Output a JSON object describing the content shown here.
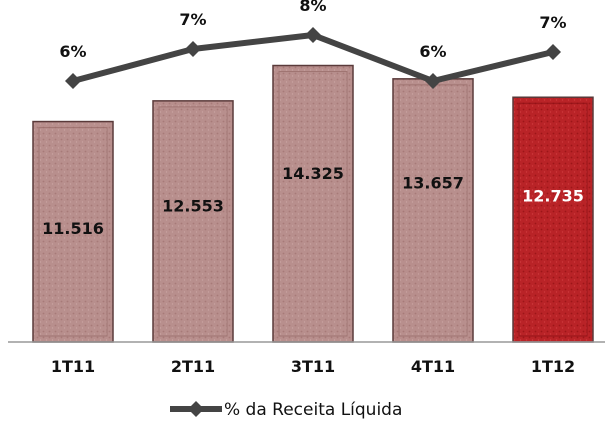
{
  "chart_data": {
    "type": "bar",
    "categories": [
      "1T11",
      "2T11",
      "3T11",
      "4T11",
      "1T12"
    ],
    "series": [
      {
        "values": [
          11516,
          12553,
          14325,
          13657,
          12735
        ],
        "value_labels": [
          "11.516",
          "12.553",
          "14.325",
          "13.657",
          "12.735"
        ]
      },
      {
        "name": "% da Receita Líquida",
        "type": "line",
        "values": [
          6,
          7,
          8,
          6,
          7
        ],
        "value_labels": [
          "6%",
          "7%",
          "8%",
          "6%",
          "7%"
        ]
      }
    ],
    "highlight_index": 4,
    "legend": "bottom",
    "grid": false,
    "colors": {
      "bar": "#b48a88",
      "bar_edge": "#5a3a3a",
      "bar_highlight": "#b82024",
      "line": "#444444",
      "axis": "#999999",
      "value_label": "#111111",
      "value_label_highlight": "#ffffff"
    }
  }
}
